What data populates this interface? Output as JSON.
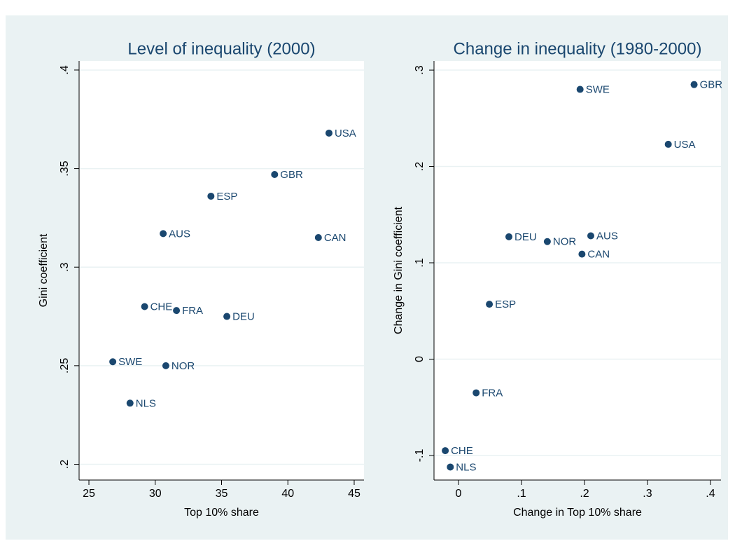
{
  "chart_data": [
    {
      "type": "scatter",
      "title": "Level of inequality (2000)",
      "x_label": "Top 10% share",
      "y_label": "Gini coefficient",
      "labels": [
        "USA",
        "GBR",
        "ESP",
        "AUS",
        "CAN",
        "CHE",
        "FRA",
        "DEU",
        "SWE",
        "NOR",
        "NLS"
      ],
      "x": [
        43.1,
        39.0,
        34.2,
        30.6,
        42.3,
        29.2,
        31.6,
        35.4,
        26.8,
        30.8,
        28.1
      ],
      "y": [
        0.368,
        0.347,
        0.336,
        0.317,
        0.315,
        0.28,
        0.278,
        0.275,
        0.252,
        0.25,
        0.231
      ],
      "color": "#1a476f",
      "xlim": [
        24.26,
        45.74
      ],
      "ylim": [
        0.192,
        0.4046
      ],
      "xticks": [
        25,
        30,
        35,
        40,
        45
      ],
      "yticks": [
        {
          "value": 0.2,
          "label": ".2"
        },
        {
          "value": 0.25,
          "label": ".25"
        },
        {
          "value": 0.3,
          "label": ".3"
        },
        {
          "value": 0.35,
          "label": ".35"
        },
        {
          "value": 0.4,
          "label": ".4"
        }
      ],
      "grid": true
    },
    {
      "type": "scatter",
      "title": "Change in inequality (1980-2000)",
      "x_label": "Change in Top 10% share",
      "y_label": "Change in Gini coefficient",
      "labels": [
        "SWE",
        "GBR",
        "USA",
        "DEU",
        "NOR",
        "AUS",
        "CAN",
        "ESP",
        "FRA",
        "CHE",
        "NLS"
      ],
      "x": [
        0.193,
        0.374,
        0.333,
        0.08,
        0.141,
        0.21,
        0.196,
        0.049,
        0.028,
        -0.021,
        -0.013
      ],
      "y": [
        0.28,
        0.285,
        0.223,
        0.127,
        0.122,
        0.128,
        0.109,
        0.057,
        -0.035,
        -0.095,
        -0.112
      ],
      "color": "#1a476f",
      "xlim": [
        -0.0389,
        0.4167
      ],
      "ylim": [
        -0.1255,
        0.3095
      ],
      "xticks": [
        0,
        {
          "value": 0.1,
          "label": ".1"
        },
        {
          "value": 0.2,
          "label": ".2"
        },
        {
          "value": 0.3,
          "label": ".3"
        },
        {
          "value": 0.4,
          "label": ".4"
        }
      ],
      "yticks": [
        {
          "value": -0.1,
          "label": "-.1"
        },
        0,
        {
          "value": 0.1,
          "label": ".1"
        },
        {
          "value": 0.2,
          "label": ".2"
        },
        {
          "value": 0.3,
          "label": ".3"
        }
      ],
      "grid": true
    }
  ]
}
